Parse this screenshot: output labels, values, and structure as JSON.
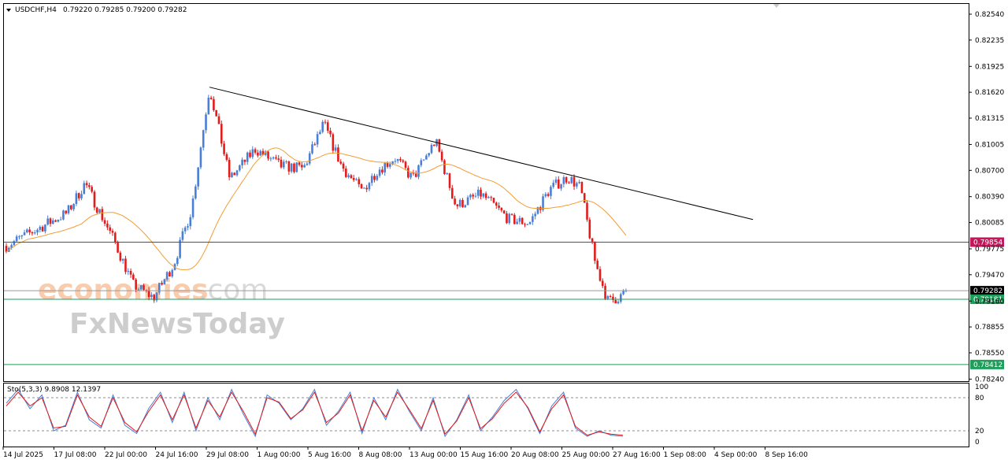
{
  "chart_data": [
    {
      "type": "candlestick",
      "symbol_label": "USDCHF,H4",
      "ohlc_label": "0.79220 0.79285 0.79200 0.79282",
      "ylim": [
        0.781,
        0.827
      ],
      "y_ticks": [
        "0.82540",
        "0.82235",
        "0.81925",
        "0.81620",
        "0.81315",
        "0.81005",
        "0.80700",
        "0.80390",
        "0.80085",
        "0.79775",
        "0.79470",
        "0.79160",
        "0.78855",
        "0.78550",
        "0.78240"
      ],
      "x_ticks": [
        "14 Jul 2025",
        "17 Jul 08:00",
        "22 Jul 00:00",
        "24 Jul 16:00",
        "29 Jul 08:00",
        "1 Aug 00:00",
        "5 Aug 16:00",
        "8 Aug 08:00",
        "13 Aug 00:00",
        "15 Aug 16:00",
        "20 Aug 08:00",
        "25 Aug 00:00",
        "27 Aug 16:00",
        "1 Sep 08:00",
        "4 Sep 00:00",
        "8 Sep 16:00"
      ],
      "price_levels": [
        {
          "value": "0.79854",
          "color": "#c2185b"
        },
        {
          "value": "0.79282",
          "color": "#000000"
        },
        {
          "value": "0.79181",
          "color": "#1e9e5a"
        },
        {
          "value": "0.78412",
          "color": "#1e9e5a"
        }
      ],
      "trendline": {
        "from": [
          0.8168,
          4
        ],
        "to": [
          0.8012,
          14.7
        ]
      },
      "bull_color": "#4a7fd6",
      "bear_color": "#e21b1b",
      "ma_color": "#f39c33",
      "anchors": [
        [
          0,
          0.7981
        ],
        [
          1.2,
          0.802
        ],
        [
          1.55,
          0.8055
        ],
        [
          2.1,
          0.799
        ],
        [
          2.5,
          0.7935
        ],
        [
          2.9,
          0.792
        ],
        [
          3.3,
          0.796
        ],
        [
          3.65,
          0.8025
        ],
        [
          4.0,
          0.8168
        ],
        [
          4.4,
          0.806
        ],
        [
          4.9,
          0.8095
        ],
        [
          5.4,
          0.8075
        ],
        [
          5.85,
          0.8072
        ],
        [
          6.25,
          0.8125
        ],
        [
          6.6,
          0.8075
        ],
        [
          7.0,
          0.8045
        ],
        [
          7.3,
          0.807
        ],
        [
          7.65,
          0.8085
        ],
        [
          8.0,
          0.806
        ],
        [
          8.45,
          0.8105
        ],
        [
          8.85,
          0.8028
        ],
        [
          9.35,
          0.8042
        ],
        [
          9.9,
          0.8012
        ],
        [
          10.3,
          0.8008
        ],
        [
          10.7,
          0.8048
        ],
        [
          11.05,
          0.8062
        ],
        [
          11.3,
          0.805
        ],
        [
          11.6,
          0.796
        ],
        [
          11.85,
          0.7915
        ],
        [
          12.1,
          0.7922
        ],
        [
          12.2,
          0.79282
        ]
      ]
    },
    {
      "type": "line",
      "indicator_label": "Sto(5,3,3) 9.8908 12.1397",
      "y_ticks": [
        "100",
        "80",
        "20",
        "0"
      ],
      "ylim": [
        0,
        100
      ],
      "levels": [
        80,
        20
      ],
      "series": [
        {
          "role": "main",
          "color": "#4a7fd6"
        },
        {
          "role": "signal",
          "color": "#e21b1b"
        }
      ],
      "values_main": [
        70,
        95,
        60,
        85,
        20,
        30,
        90,
        40,
        25,
        85,
        30,
        15,
        60,
        90,
        35,
        90,
        20,
        80,
        40,
        95,
        50,
        10,
        85,
        70,
        40,
        60,
        95,
        30,
        55,
        90,
        15,
        80,
        40,
        95,
        55,
        20,
        80,
        10,
        40,
        85,
        20,
        45,
        75,
        95,
        60,
        15,
        65,
        90,
        25,
        10,
        20,
        12,
        10
      ],
      "values_signal": [
        65,
        90,
        65,
        80,
        25,
        28,
        85,
        45,
        28,
        80,
        35,
        18,
        55,
        85,
        40,
        85,
        25,
        75,
        45,
        90,
        55,
        14,
        80,
        72,
        42,
        58,
        90,
        35,
        52,
        85,
        20,
        75,
        45,
        90,
        58,
        24,
        75,
        14,
        38,
        80,
        24,
        42,
        70,
        90,
        62,
        18,
        60,
        85,
        28,
        12,
        18,
        14,
        12
      ]
    }
  ],
  "watermark": {
    "brand1": "economies",
    "brand1_suffix": ".com",
    "brand2": "FxNewsToday"
  }
}
